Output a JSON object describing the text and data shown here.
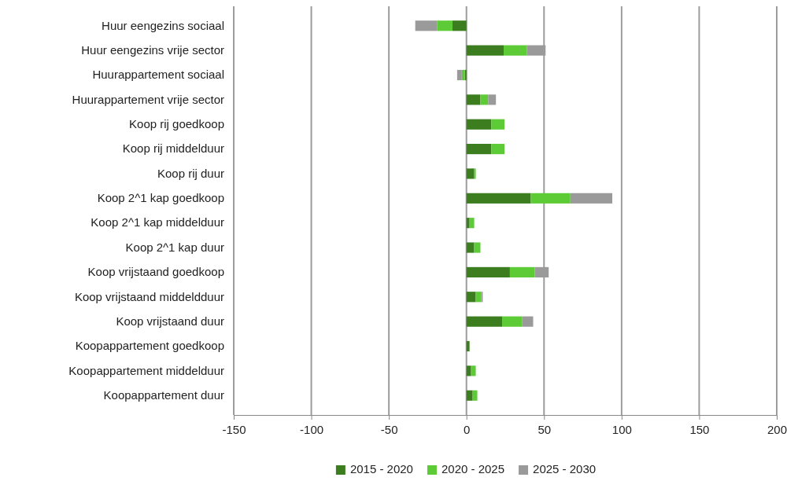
{
  "chart_data": {
    "type": "bar",
    "orientation": "horizontal",
    "stacked": true,
    "categories": [
      "Huur eengezins sociaal",
      "Huur eengezins vrije sector",
      "Huurappartement sociaal",
      "Huurappartement vrije sector",
      "Koop rij goedkoop",
      "Koop rij middelduur",
      "Koop rij duur",
      "Koop 2^1 kap goedkoop",
      "Koop 2^1 kap middelduur",
      "Koop 2^1 kap duur",
      "Koop vrijstaand goedkoop",
      "Koop vrijstaand middeldduur",
      "Koop vrijstaand duur",
      "Koopappartement goedkoop",
      "Koopappartement middelduur",
      "Koopappartement duur"
    ],
    "series": [
      {
        "name": "2015 - 2020",
        "color": "#3b7d1f",
        "values": [
          -9,
          24,
          -1,
          9,
          16,
          16,
          5,
          41.5,
          2,
          5,
          28,
          6,
          23,
          2,
          3,
          4
        ]
      },
      {
        "name": "2020 - 2025",
        "color": "#5dcb35",
        "values": [
          -10,
          15,
          -2,
          5,
          8.5,
          8.5,
          1,
          25.5,
          3,
          4,
          16,
          3.5,
          13,
          0,
          3,
          3
        ]
      },
      {
        "name": "2025 - 2030",
        "color": "#9a9a9a",
        "values": [
          -14,
          12,
          -3,
          5,
          0,
          0,
          0,
          27,
          0,
          0,
          9,
          1,
          7,
          0,
          0,
          0
        ]
      }
    ],
    "xlim": [
      -150,
      200
    ],
    "xticks": [
      -150,
      -100,
      -50,
      0,
      50,
      100,
      150,
      200
    ],
    "grid": "x",
    "legend": "bottom"
  }
}
